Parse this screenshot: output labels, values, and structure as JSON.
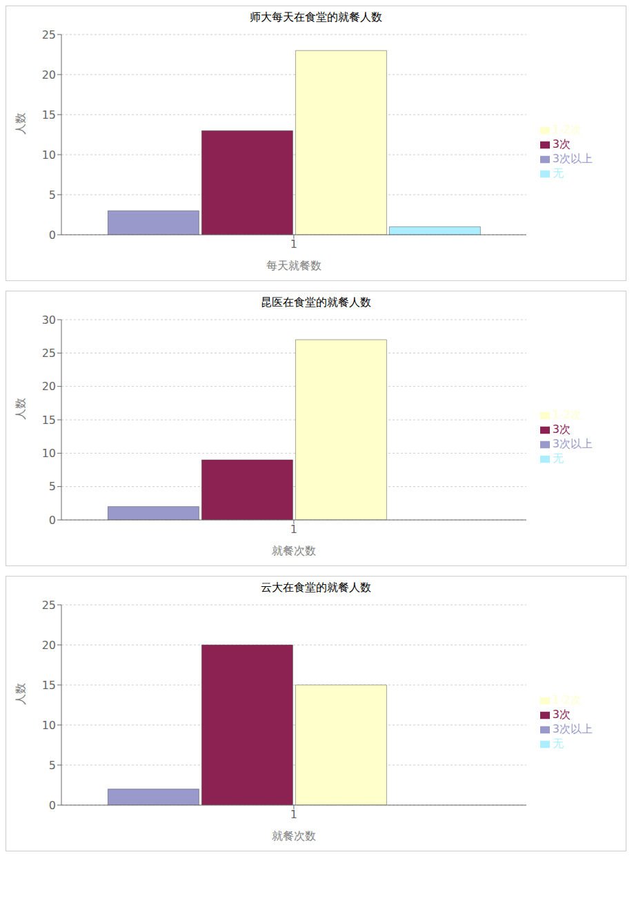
{
  "chart_data": [
    {
      "type": "bar",
      "title": "师大每天在食堂的就餐人数",
      "xlabel": "每天就餐数",
      "ylabel": "人数",
      "categories": [
        "1"
      ],
      "series": [
        {
          "name": "3次以上",
          "color": "#9999cc",
          "values": [
            3
          ]
        },
        {
          "name": "3次",
          "color": "#8b2252",
          "values": [
            13
          ]
        },
        {
          "name": "1-2次",
          "color": "#ffffcc",
          "values": [
            23
          ]
        },
        {
          "name": "无",
          "color": "#aaeeff",
          "values": [
            1
          ]
        }
      ],
      "ylim": [
        0,
        25
      ],
      "yticks": [
        0,
        5,
        10,
        15,
        20,
        25
      ],
      "grid": true,
      "legend": "right"
    },
    {
      "type": "bar",
      "title": "昆医在食堂的就餐人数",
      "xlabel": "就餐次数",
      "ylabel": "人数",
      "categories": [
        "1"
      ],
      "series": [
        {
          "name": "3次以上",
          "color": "#9999cc",
          "values": [
            2
          ]
        },
        {
          "name": "3次",
          "color": "#8b2252",
          "values": [
            9
          ]
        },
        {
          "name": "1-2次",
          "color": "#ffffcc",
          "values": [
            27
          ]
        },
        {
          "name": "无",
          "color": "#aaeeff",
          "values": [
            0
          ]
        }
      ],
      "ylim": [
        0,
        30
      ],
      "yticks": [
        0,
        5,
        10,
        15,
        20,
        25,
        30
      ],
      "grid": true,
      "legend": "right"
    },
    {
      "type": "bar",
      "title": "云大在食堂的就餐人数",
      "xlabel": "就餐次数",
      "ylabel": "人数",
      "categories": [
        "1"
      ],
      "series": [
        {
          "name": "3次以上",
          "color": "#9999cc",
          "values": [
            2
          ]
        },
        {
          "name": "3次",
          "color": "#8b2252",
          "values": [
            20
          ]
        },
        {
          "name": "1-2次",
          "color": "#ffffcc",
          "values": [
            15
          ]
        },
        {
          "name": "无",
          "color": "#aaeeff",
          "values": [
            0
          ]
        }
      ],
      "ylim": [
        0,
        25
      ],
      "yticks": [
        0,
        5,
        10,
        15,
        20,
        25
      ],
      "grid": true,
      "legend": "right"
    }
  ]
}
